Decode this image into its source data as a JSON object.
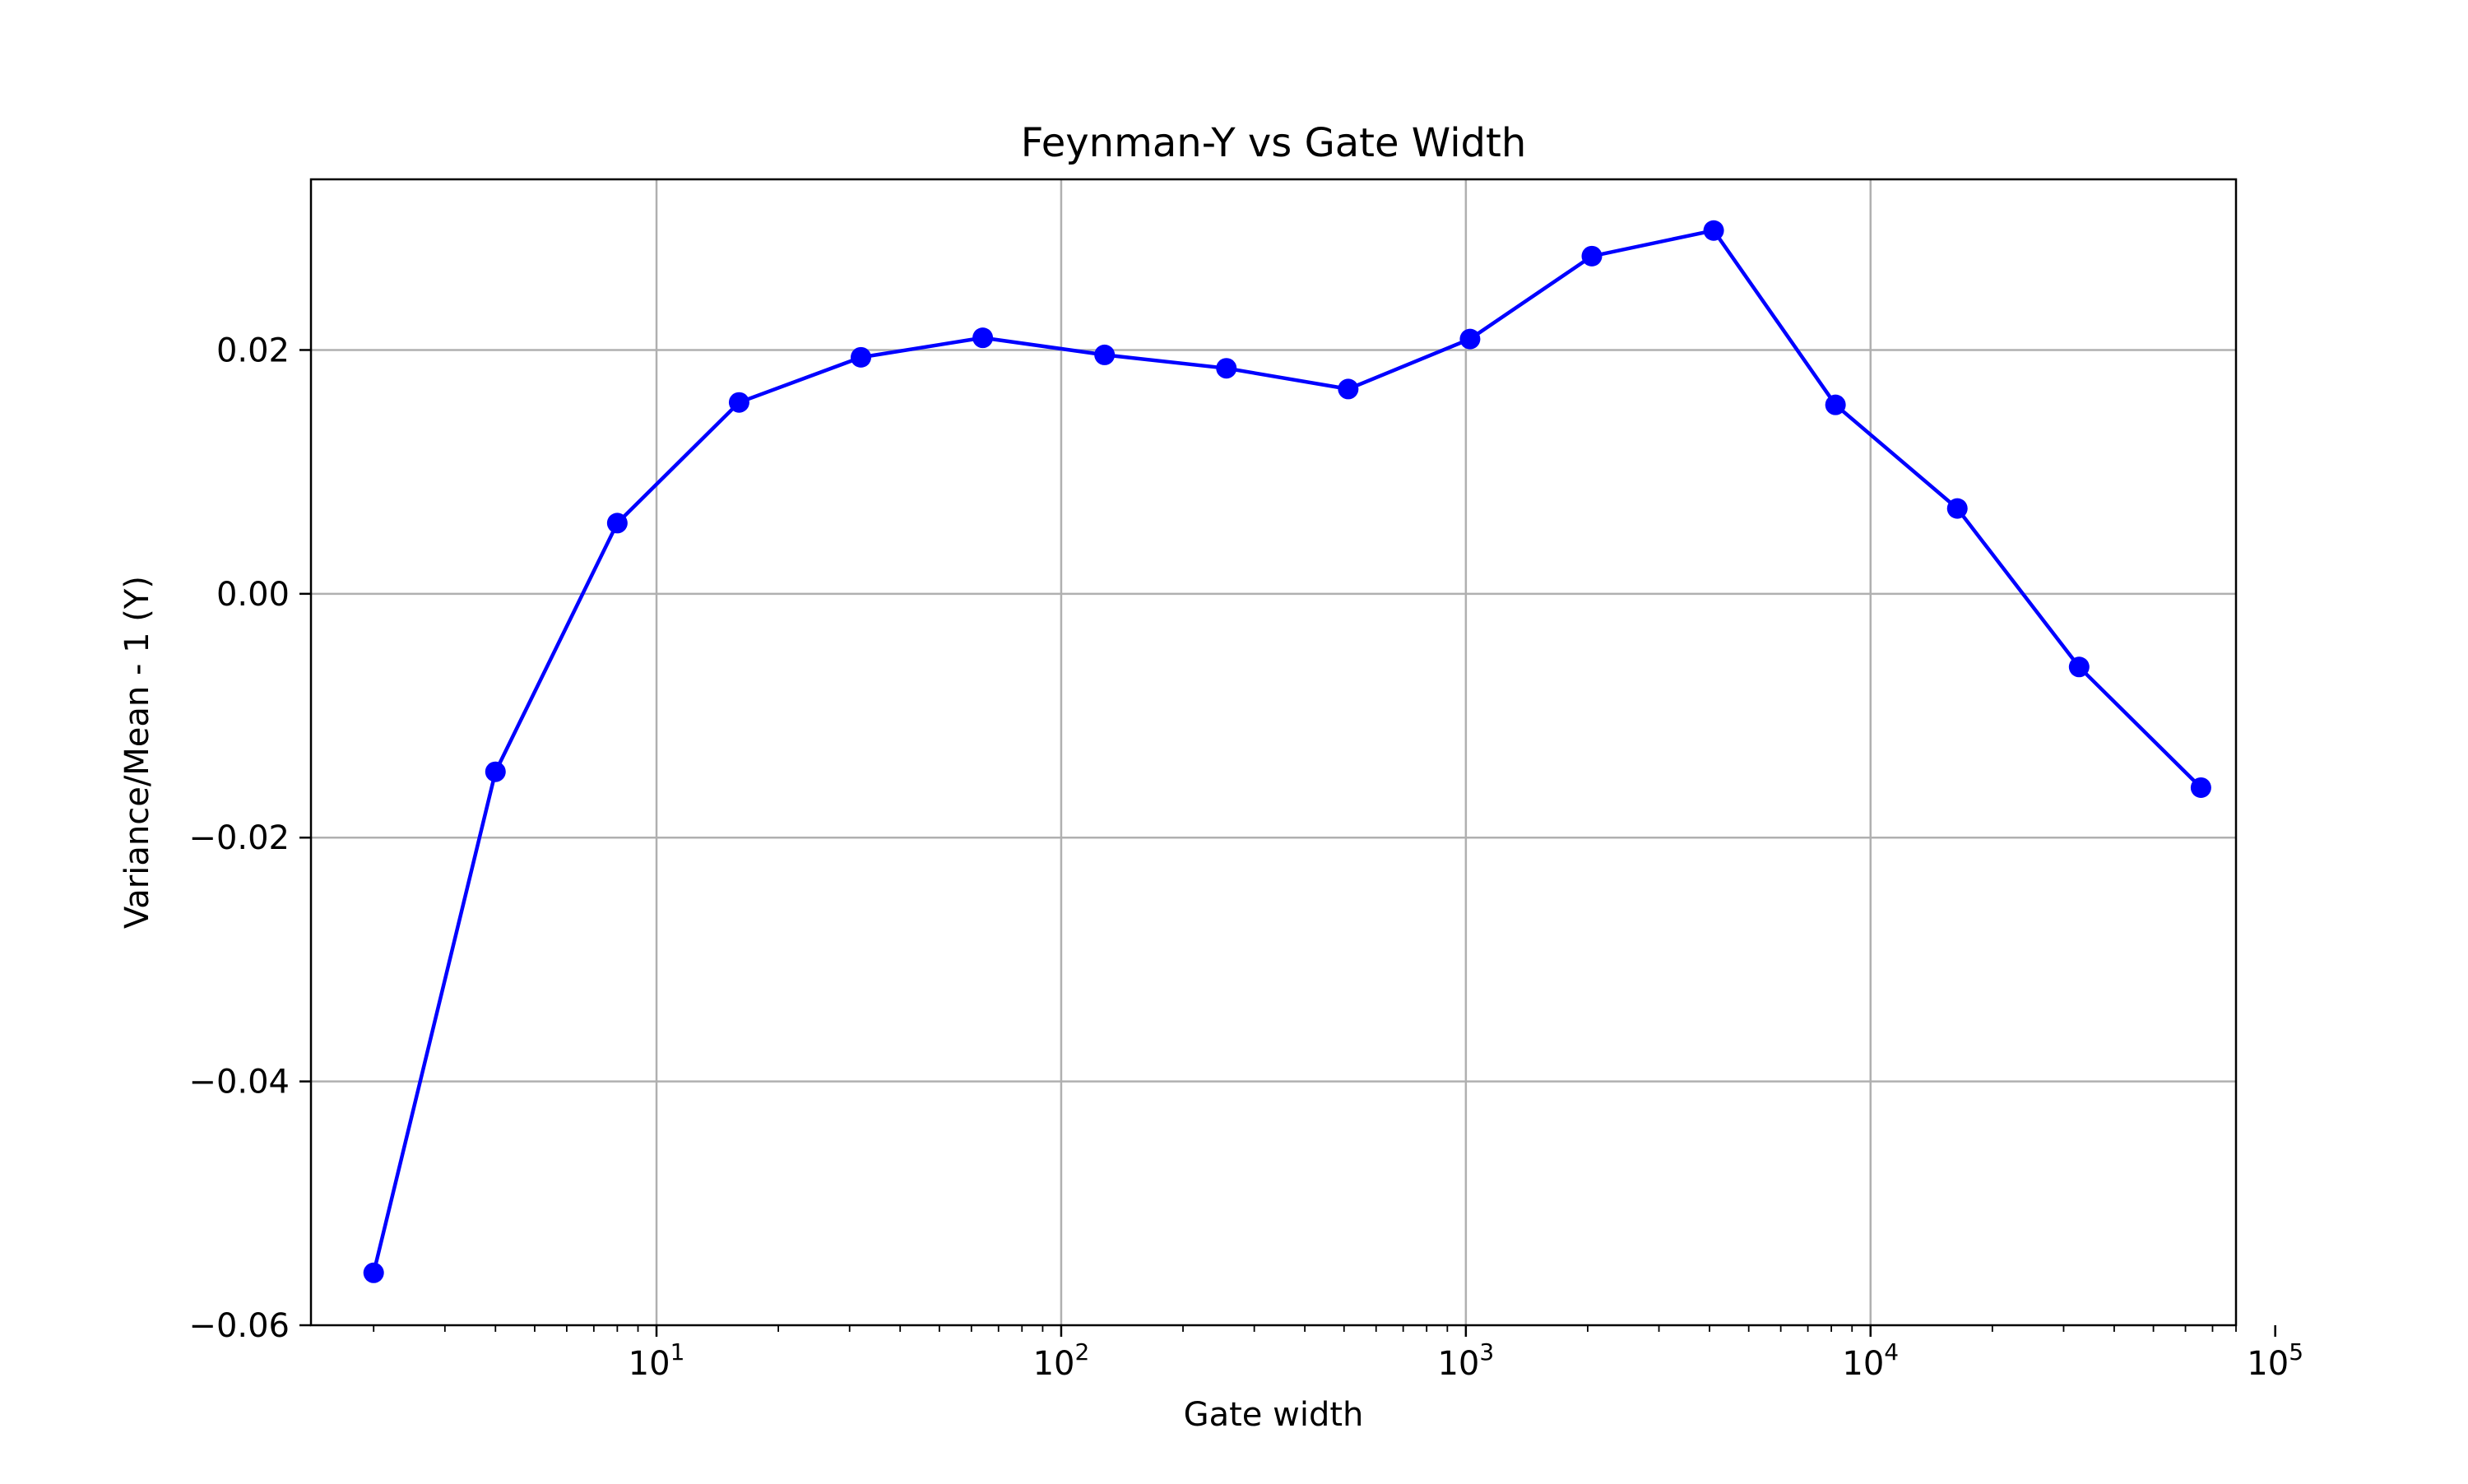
{
  "chart_data": {
    "type": "line",
    "title": "Feynman-Y vs Gate Width",
    "xlabel": "Gate width",
    "ylabel": "Variance/Mean - 1 (Y)",
    "x_scale": "log",
    "xlim": [
      1.4,
      80000
    ],
    "ylim": [
      -0.06,
      0.034
    ],
    "grid": true,
    "x_ticks": [
      {
        "value": 10,
        "base": "10",
        "exp": "1"
      },
      {
        "value": 100,
        "base": "10",
        "exp": "2"
      },
      {
        "value": 1000,
        "base": "10",
        "exp": "3"
      },
      {
        "value": 10000,
        "base": "10",
        "exp": "4"
      },
      {
        "value": 100000,
        "base": "10",
        "exp": "5"
      }
    ],
    "y_ticks": [
      {
        "value": 0.02,
        "label": "0.02"
      },
      {
        "value": 0.0,
        "label": "0.00"
      },
      {
        "value": -0.02,
        "label": "−0.02"
      },
      {
        "value": -0.04,
        "label": "−0.04"
      },
      {
        "value": -0.06,
        "label": "−0.06"
      }
    ],
    "series": [
      {
        "color": "#0000ff",
        "marker": "circle",
        "x": [
          2,
          4,
          8,
          16,
          32,
          64,
          128,
          256,
          512,
          1024,
          2048,
          4096,
          8192,
          16384,
          32768,
          65536
        ],
        "y": [
          -0.0557,
          -0.0146,
          0.0058,
          0.0157,
          0.0194,
          0.021,
          0.0196,
          0.0185,
          0.0168,
          0.0209,
          0.0277,
          0.0298,
          0.0155,
          0.007,
          -0.006,
          -0.0159
        ]
      }
    ]
  }
}
